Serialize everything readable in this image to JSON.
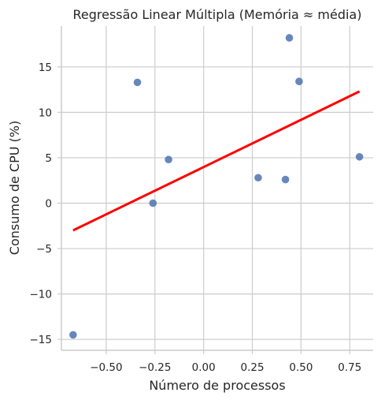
{
  "chart_data": {
    "type": "scatter",
    "title": "Regressão Linear Múltipla (Memória ≈ média)",
    "xlabel": "Número de processos",
    "ylabel": "Consumo de CPU (%)",
    "xlim": [
      -0.73,
      0.87
    ],
    "ylim": [
      -16.2,
      19.5
    ],
    "xticks": [
      -0.5,
      -0.25,
      0.0,
      0.25,
      0.5,
      0.75
    ],
    "xtick_labels": [
      "−0.50",
      "−0.25",
      "0.00",
      "0.25",
      "0.50",
      "0.75"
    ],
    "yticks": [
      -15,
      -10,
      -5,
      0,
      5,
      10,
      15
    ],
    "ytick_labels": [
      "−15",
      "−10",
      "−5",
      "0",
      "5",
      "10",
      "15"
    ],
    "grid": true,
    "points": [
      {
        "x": -0.67,
        "y": -14.5
      },
      {
        "x": -0.34,
        "y": 13.3
      },
      {
        "x": -0.26,
        "y": 0.0
      },
      {
        "x": -0.18,
        "y": 4.8
      },
      {
        "x": 0.28,
        "y": 2.8
      },
      {
        "x": 0.42,
        "y": 2.6
      },
      {
        "x": 0.44,
        "y": 18.2
      },
      {
        "x": 0.49,
        "y": 13.4
      },
      {
        "x": 0.8,
        "y": 5.1
      }
    ],
    "regression_line": {
      "x": [
        -0.67,
        0.8
      ],
      "y": [
        -3.0,
        12.3
      ],
      "color": "#ff0000"
    },
    "point_color": "#4c72b0"
  }
}
